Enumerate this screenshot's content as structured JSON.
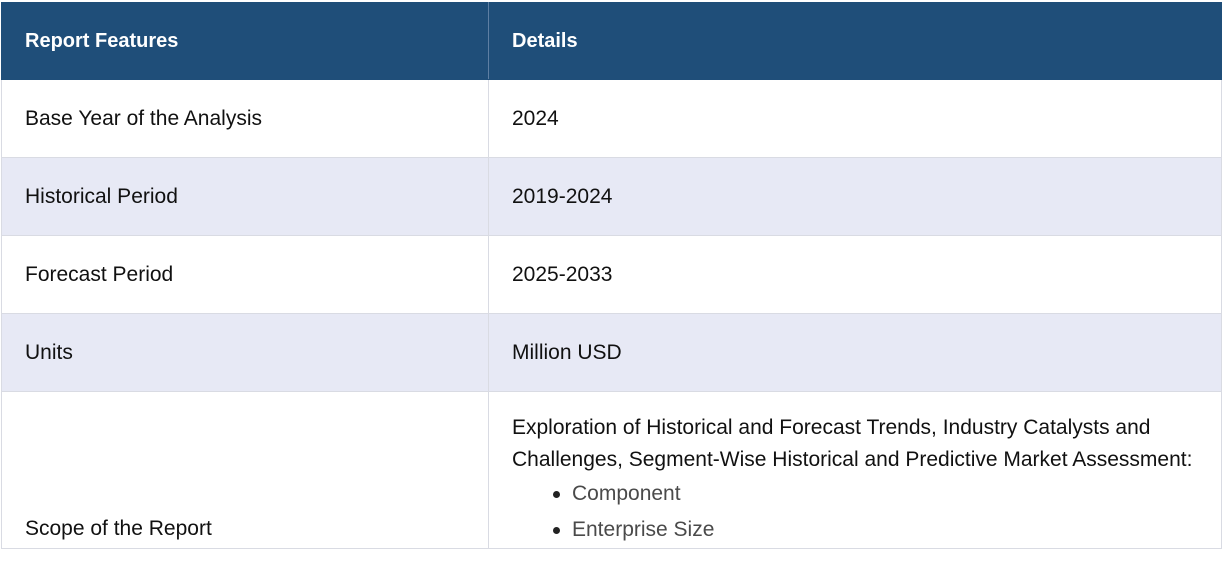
{
  "header": {
    "col1": "Report Features",
    "col2": "Details"
  },
  "rows": [
    {
      "feature": "Base Year of the Analysis",
      "detail": "2024"
    },
    {
      "feature": "Historical Period",
      "detail": "2019-2024"
    },
    {
      "feature": "Forecast Period",
      "detail": "2025-2033"
    },
    {
      "feature": "Units",
      "detail": "Million USD"
    }
  ],
  "scope": {
    "feature": "Scope of the Report",
    "description": "Exploration of Historical and Forecast Trends, Industry Catalysts and Challenges, Segment-Wise Historical and Predictive Market Assessment:",
    "items": [
      "Component",
      "Enterprise Size"
    ]
  },
  "colors": {
    "header_bg": "#1f4e79",
    "alt_row_bg": "#e7e9f5",
    "border": "#d9dbe3"
  }
}
